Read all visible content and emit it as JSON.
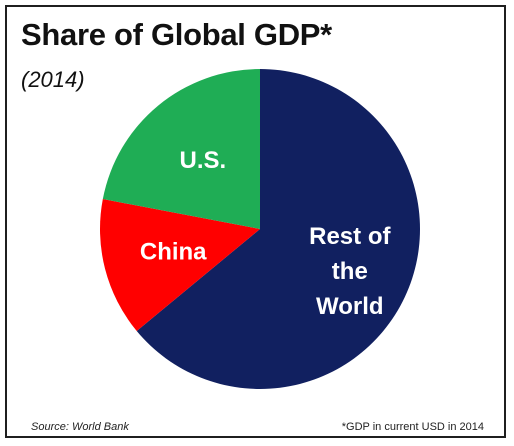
{
  "title": "Share of Global GDP*",
  "subtitle": "(2014)",
  "footer": {
    "source": "Source: World Bank",
    "note": "*GDP in current USD in 2014"
  },
  "chart_data": {
    "type": "pie",
    "start": "12 o'clock, clockwise",
    "slices": [
      {
        "label": "Rest of the World",
        "label_lines": [
          "Rest of",
          "the",
          "World"
        ],
        "value": 64,
        "color": "#112060"
      },
      {
        "label": "China",
        "label_lines": [
          "China"
        ],
        "value": 14,
        "color": "#ff0000"
      },
      {
        "label": "U.S.",
        "label_lines": [
          "U.S."
        ],
        "value": 22,
        "color": "#1fad55"
      }
    ],
    "legend": "none"
  }
}
